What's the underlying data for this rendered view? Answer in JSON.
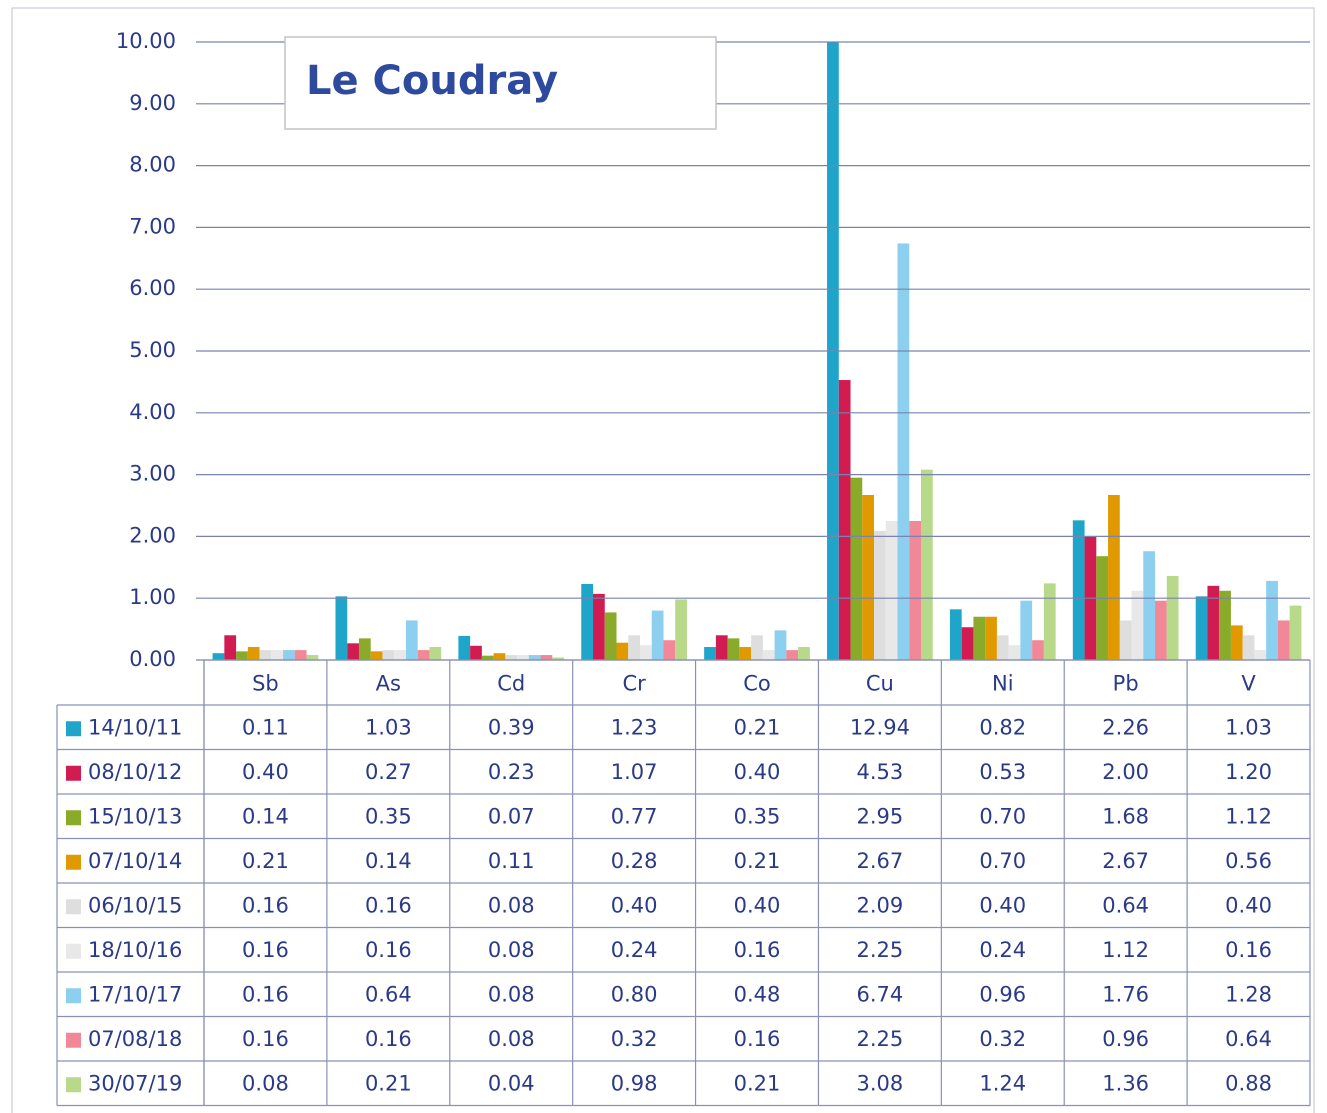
{
  "chart_data": {
    "type": "bar",
    "title": "Le Coudray",
    "categories": [
      "Sb",
      "As",
      "Cd",
      "Cr",
      "Co",
      "Cu",
      "Ni",
      "Pb",
      "V"
    ],
    "ylim": [
      0,
      10
    ],
    "yticks": [
      {
        "value": 0,
        "label": "0.00"
      },
      {
        "value": 1,
        "label": "1.00"
      },
      {
        "value": 2,
        "label": "2.00"
      },
      {
        "value": 3,
        "label": "3.00"
      },
      {
        "value": 4,
        "label": "4.00"
      },
      {
        "value": 5,
        "label": "5.00"
      },
      {
        "value": 6,
        "label": "6.00"
      },
      {
        "value": 7,
        "label": "7.00"
      },
      {
        "value": 8,
        "label": "8.00"
      },
      {
        "value": 9,
        "label": "9.00"
      },
      {
        "value": 10,
        "label": "10.00"
      }
    ],
    "grid": true,
    "series": [
      {
        "name": "14/10/11",
        "color": "#1fa5c9",
        "values": [
          0.11,
          1.03,
          0.39,
          1.23,
          0.21,
          12.94,
          0.82,
          2.26,
          1.03
        ],
        "value_labels": [
          "0.11",
          "1.03",
          "0.39",
          "1.23",
          "0.21",
          "12.94",
          "0.82",
          "2.26",
          "1.03"
        ]
      },
      {
        "name": "08/10/12",
        "color": "#d01c50",
        "values": [
          0.4,
          0.27,
          0.23,
          1.07,
          0.4,
          4.53,
          0.53,
          2,
          1.2
        ],
        "value_labels": [
          "0.40",
          "0.27",
          "0.23",
          "1.07",
          "0.40",
          "4.53",
          "0.53",
          "2.00",
          "1.20"
        ]
      },
      {
        "name": "15/10/13",
        "color": "#8aab2a",
        "values": [
          0.14,
          0.35,
          0.07,
          0.77,
          0.35,
          2.95,
          0.7,
          1.68,
          1.12
        ],
        "value_labels": [
          "0.14",
          "0.35",
          "0.07",
          "0.77",
          "0.35",
          "2.95",
          "0.70",
          "1.68",
          "1.12"
        ]
      },
      {
        "name": "07/10/14",
        "color": "#e09a00",
        "values": [
          0.21,
          0.14,
          0.11,
          0.28,
          0.21,
          2.67,
          0.7,
          2.67,
          0.56
        ],
        "value_labels": [
          "0.21",
          "0.14",
          "0.11",
          "0.28",
          "0.21",
          "2.67",
          "0.70",
          "2.67",
          "0.56"
        ]
      },
      {
        "name": "06/10/15",
        "color": "#dedede",
        "values": [
          0.16,
          0.16,
          0.08,
          0.4,
          0.4,
          2.09,
          0.4,
          0.64,
          0.4
        ],
        "value_labels": [
          "0.16",
          "0.16",
          "0.08",
          "0.40",
          "0.40",
          "2.09",
          "0.40",
          "0.64",
          "0.40"
        ]
      },
      {
        "name": "18/10/16",
        "color": "#e8e8e8",
        "values": [
          0.16,
          0.16,
          0.08,
          0.24,
          0.16,
          2.25,
          0.24,
          1.12,
          0.16
        ],
        "value_labels": [
          "0.16",
          "0.16",
          "0.08",
          "0.24",
          "0.16",
          "2.25",
          "0.24",
          "1.12",
          "0.16"
        ]
      },
      {
        "name": "17/10/17",
        "color": "#8ccfee",
        "values": [
          0.16,
          0.64,
          0.08,
          0.8,
          0.48,
          6.74,
          0.96,
          1.76,
          1.28
        ],
        "value_labels": [
          "0.16",
          "0.64",
          "0.08",
          "0.80",
          "0.48",
          "6.74",
          "0.96",
          "1.76",
          "1.28"
        ]
      },
      {
        "name": "07/08/18",
        "color": "#f08898",
        "values": [
          0.16,
          0.16,
          0.08,
          0.32,
          0.16,
          2.25,
          0.32,
          0.96,
          0.64
        ],
        "value_labels": [
          "0.16",
          "0.16",
          "0.08",
          "0.32",
          "0.16",
          "2.25",
          "0.32",
          "0.96",
          "0.64"
        ]
      },
      {
        "name": "30/07/19",
        "color": "#b8d88a",
        "values": [
          0.08,
          0.21,
          0.04,
          0.98,
          0.21,
          3.08,
          1.24,
          1.36,
          0.88
        ],
        "value_labels": [
          "0.08",
          "0.21",
          "0.04",
          "0.98",
          "0.21",
          "3.08",
          "1.24",
          "1.36",
          "0.88"
        ]
      }
    ]
  }
}
